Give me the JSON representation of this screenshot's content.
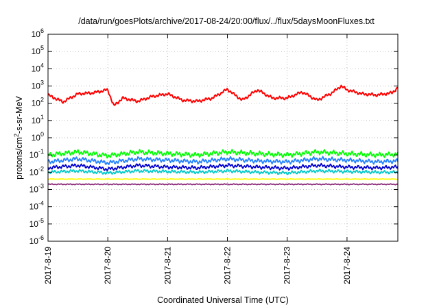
{
  "chart_data": {
    "type": "line",
    "title": "/data/run/goesPlots/archive/2017-08-24/20:00/flux/../flux/5daysMoonFluxes.txt",
    "xlabel": "Coordinated Universal Time (UTC)",
    "ylabel": "protons/cm²-s-sr-MeV",
    "y_scale": "log",
    "ylim_exp": [
      -6,
      6
    ],
    "y_tick_exponents": [
      -6,
      -5,
      -4,
      -3,
      -2,
      -1,
      0,
      1,
      2,
      3,
      4,
      5,
      6
    ],
    "x_tick_labels": [
      "2017-8-19",
      "2017-8-20",
      "2017-8-21",
      "2017-8-22",
      "2017-8-23",
      "2017-8-24"
    ],
    "x_range_days": [
      0,
      5.85
    ],
    "grid": true,
    "series": [
      {
        "color": "#ff0000",
        "x": [
          0.0,
          0.25,
          0.5,
          0.75,
          1.0,
          1.1,
          1.25,
          1.5,
          1.75,
          2.0,
          2.25,
          2.5,
          2.75,
          3.0,
          3.1,
          3.25,
          3.5,
          3.75,
          4.0,
          4.25,
          4.5,
          4.75,
          4.9,
          5.0,
          5.25,
          5.5,
          5.75,
          5.85
        ],
        "values": [
          300,
          120,
          350,
          400,
          600,
          70,
          200,
          130,
          250,
          350,
          150,
          130,
          200,
          650,
          350,
          150,
          600,
          200,
          200,
          450,
          150,
          400,
          1000,
          600,
          350,
          300,
          400,
          800
        ]
      },
      {
        "color": "#00ff00",
        "x": [
          0.0,
          0.5,
          1.0,
          1.5,
          2.0,
          2.5,
          3.0,
          3.5,
          4.0,
          4.5,
          5.0,
          5.5,
          5.85
        ],
        "values": [
          0.1,
          0.15,
          0.09,
          0.15,
          0.12,
          0.1,
          0.15,
          0.12,
          0.1,
          0.15,
          0.12,
          0.1,
          0.11
        ]
      },
      {
        "color": "#2080ff",
        "x": [
          0.0,
          0.5,
          1.0,
          1.5,
          2.0,
          2.5,
          3.0,
          3.5,
          4.0,
          4.5,
          5.0,
          5.5,
          5.85
        ],
        "values": [
          0.04,
          0.06,
          0.035,
          0.06,
          0.05,
          0.04,
          0.06,
          0.045,
          0.04,
          0.06,
          0.05,
          0.04,
          0.045
        ]
      },
      {
        "color": "#0000cc",
        "x": [
          0.0,
          0.5,
          1.0,
          1.5,
          2.0,
          2.5,
          3.0,
          3.5,
          4.0,
          4.5,
          5.0,
          5.5,
          5.85
        ],
        "values": [
          0.018,
          0.025,
          0.015,
          0.025,
          0.02,
          0.018,
          0.025,
          0.02,
          0.017,
          0.025,
          0.02,
          0.018,
          0.02
        ]
      },
      {
        "color": "#00c8c8",
        "x": [
          0.0,
          0.5,
          1.0,
          1.5,
          2.0,
          2.5,
          3.0,
          3.5,
          4.0,
          4.5,
          5.0,
          5.5,
          5.85
        ],
        "values": [
          0.01,
          0.012,
          0.009,
          0.012,
          0.011,
          0.01,
          0.012,
          0.01,
          0.009,
          0.012,
          0.011,
          0.01,
          0.01
        ]
      },
      {
        "color": "#ffff00",
        "x": [
          0.0,
          1.0,
          2.0,
          3.0,
          4.0,
          5.0,
          5.85
        ],
        "values": [
          0.004,
          0.004,
          0.004,
          0.004,
          0.004,
          0.004,
          0.004
        ]
      },
      {
        "color": "#8b2a7a",
        "x": [
          0.0,
          1.0,
          2.0,
          3.0,
          4.0,
          5.0,
          5.85
        ],
        "values": [
          0.002,
          0.002,
          0.002,
          0.002,
          0.002,
          0.002,
          0.002
        ]
      }
    ]
  }
}
